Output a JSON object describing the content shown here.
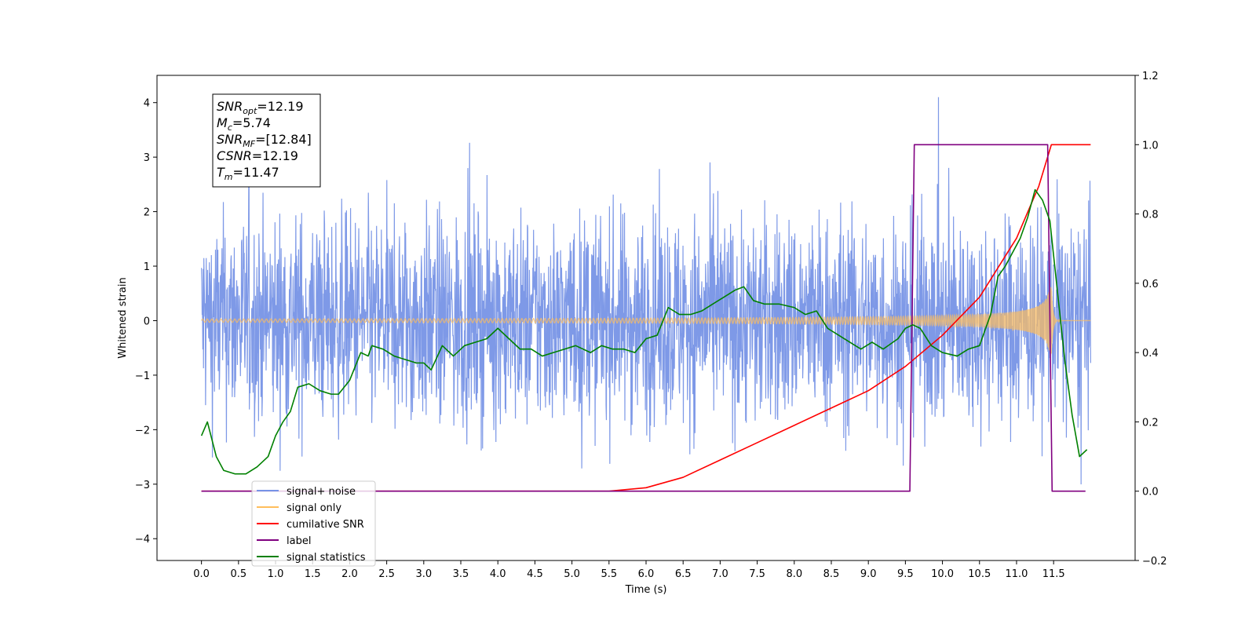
{
  "chart_data": {
    "type": "line",
    "xlabel": "Time (s)",
    "ylabel": "Whitened strain",
    "xlim": [
      -0.6,
      12.6
    ],
    "ylim": [
      -4.4,
      4.5
    ],
    "ylim_right": [
      -0.2,
      1.2
    ],
    "x_ticks": [
      "0.0",
      "0.5",
      "1.0",
      "1.5",
      "2.0",
      "2.5",
      "3.0",
      "3.5",
      "4.0",
      "4.5",
      "5.0",
      "5.5",
      "6.0",
      "6.5",
      "7.0",
      "7.5",
      "8.0",
      "8.5",
      "9.0",
      "9.5",
      "10.0",
      "10.5",
      "11.0",
      "11.5"
    ],
    "y_ticks_left": [
      "-4",
      "-3",
      "-2",
      "-1",
      "0",
      "1",
      "2",
      "3",
      "4"
    ],
    "y_ticks_right": [
      "-0.2",
      "0.0",
      "0.2",
      "0.4",
      "0.6",
      "0.8",
      "1.0",
      "1.2"
    ],
    "grid": false,
    "legend_position": "lower-left",
    "annotation": [
      {
        "main": "SNR",
        "sub": "opt",
        "value": "=12.19"
      },
      {
        "main": "M",
        "sub": "c",
        "value": "=5.74"
      },
      {
        "main": "SNR",
        "sub": "MF",
        "value": "=[12.84]"
      },
      {
        "main": "CSNR",
        "sub": "",
        "value": "=12.19"
      },
      {
        "main": "T",
        "sub": "m",
        "value": "=11.47"
      }
    ],
    "series": [
      {
        "name": "signal+ noise",
        "color": "#7793e6",
        "axis": "left",
        "style": "noise",
        "description_range": [
          -3.9,
          4.1
        ],
        "x_range": [
          0.0,
          12.0
        ]
      },
      {
        "name": "signal only",
        "color": "#ffbe5c",
        "axis": "left",
        "style": "chirp",
        "merger_time": 11.47,
        "peak_amplitude": 0.8,
        "x_range": [
          0.0,
          12.0
        ]
      },
      {
        "name": "cumilative SNR",
        "color": "#ff0000",
        "axis": "right",
        "x": [
          0.0,
          5.5,
          6.0,
          6.5,
          7.0,
          7.5,
          8.0,
          8.5,
          9.0,
          9.5,
          10.0,
          10.5,
          11.0,
          11.3,
          11.47,
          12.0
        ],
        "y": [
          0.0,
          0.0,
          0.01,
          0.04,
          0.09,
          0.14,
          0.19,
          0.24,
          0.29,
          0.36,
          0.45,
          0.56,
          0.73,
          0.88,
          1.0,
          1.0
        ]
      },
      {
        "name": "label",
        "color": "#800080",
        "axis": "right",
        "x": [
          0.0,
          9.56,
          9.62,
          11.42,
          11.48,
          11.93
        ],
        "y": [
          0.0,
          0.0,
          1.0,
          1.0,
          0.0,
          0.0
        ]
      },
      {
        "name": "signal statistics",
        "color": "#008000",
        "axis": "right",
        "x": [
          0.0,
          0.08,
          0.2,
          0.3,
          0.45,
          0.6,
          0.75,
          0.9,
          1.0,
          1.1,
          1.2,
          1.3,
          1.45,
          1.6,
          1.75,
          1.85,
          2.0,
          2.15,
          2.25,
          2.3,
          2.45,
          2.6,
          2.75,
          2.9,
          3.0,
          3.1,
          3.25,
          3.4,
          3.55,
          3.7,
          3.85,
          4.0,
          4.15,
          4.3,
          4.45,
          4.6,
          4.75,
          4.9,
          5.05,
          5.25,
          5.4,
          5.55,
          5.7,
          5.85,
          6.0,
          6.15,
          6.3,
          6.45,
          6.6,
          6.75,
          6.9,
          7.05,
          7.2,
          7.32,
          7.45,
          7.6,
          7.8,
          8.0,
          8.15,
          8.3,
          8.45,
          8.6,
          8.75,
          8.9,
          9.05,
          9.2,
          9.4,
          9.5,
          9.6,
          9.7,
          9.85,
          10.0,
          10.2,
          10.35,
          10.5,
          10.65,
          10.75,
          10.85,
          10.95,
          11.05,
          11.15,
          11.25,
          11.35,
          11.45,
          11.55,
          11.65,
          11.75,
          11.85,
          11.95
        ],
        "y": [
          0.16,
          0.2,
          0.1,
          0.06,
          0.05,
          0.05,
          0.07,
          0.1,
          0.16,
          0.2,
          0.23,
          0.3,
          0.31,
          0.29,
          0.28,
          0.28,
          0.32,
          0.4,
          0.39,
          0.42,
          0.41,
          0.39,
          0.38,
          0.37,
          0.37,
          0.35,
          0.42,
          0.39,
          0.42,
          0.43,
          0.44,
          0.47,
          0.44,
          0.41,
          0.41,
          0.39,
          0.4,
          0.41,
          0.42,
          0.4,
          0.42,
          0.41,
          0.41,
          0.4,
          0.44,
          0.45,
          0.53,
          0.51,
          0.51,
          0.52,
          0.54,
          0.56,
          0.58,
          0.59,
          0.55,
          0.54,
          0.54,
          0.53,
          0.51,
          0.52,
          0.47,
          0.45,
          0.43,
          0.41,
          0.43,
          0.41,
          0.44,
          0.47,
          0.48,
          0.47,
          0.42,
          0.4,
          0.39,
          0.41,
          0.42,
          0.51,
          0.62,
          0.65,
          0.69,
          0.73,
          0.79,
          0.87,
          0.84,
          0.78,
          0.58,
          0.38,
          0.22,
          0.1,
          0.12
        ]
      }
    ]
  }
}
